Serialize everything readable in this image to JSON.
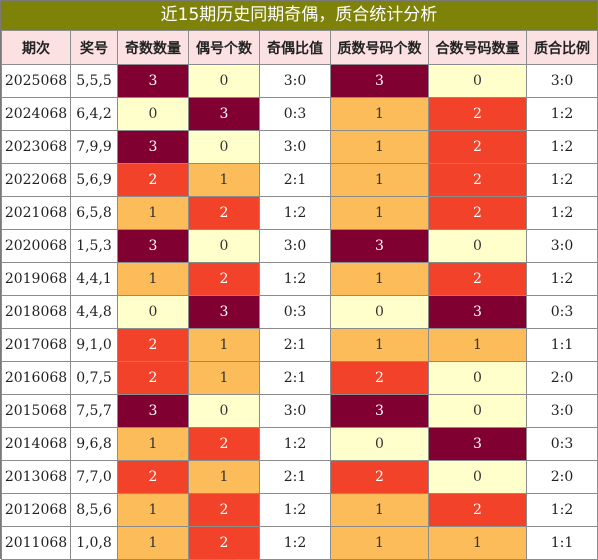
{
  "title": "近15期历史同期奇偶，质合统计分析",
  "columns": [
    "期次",
    "奖号",
    "奇数数量",
    "偶号个数",
    "奇偶比值",
    "质数号码个数",
    "合数号码数量",
    "质合比例"
  ],
  "rows": [
    [
      "2025068",
      "5,5,5",
      "3",
      "0",
      "3:0",
      "3",
      "0",
      "3:0"
    ],
    [
      "2024068",
      "6,4,2",
      "0",
      "3",
      "0:3",
      "1",
      "2",
      "1:2"
    ],
    [
      "2023068",
      "7,9,9",
      "3",
      "0",
      "3:0",
      "1",
      "2",
      "1:2"
    ],
    [
      "2022068",
      "5,6,9",
      "2",
      "1",
      "2:1",
      "1",
      "2",
      "1:2"
    ],
    [
      "2021068",
      "6,5,8",
      "1",
      "2",
      "1:2",
      "1",
      "2",
      "1:2"
    ],
    [
      "2020068",
      "1,5,3",
      "3",
      "0",
      "3:0",
      "3",
      "0",
      "3:0"
    ],
    [
      "2019068",
      "4,4,1",
      "1",
      "2",
      "1:2",
      "1",
      "2",
      "1:2"
    ],
    [
      "2018068",
      "4,4,8",
      "0",
      "3",
      "0:3",
      "0",
      "3",
      "0:3"
    ],
    [
      "2017068",
      "9,1,0",
      "2",
      "1",
      "2:1",
      "1",
      "1",
      "1:1"
    ],
    [
      "2016068",
      "0,7,5",
      "2",
      "1",
      "2:1",
      "2",
      "0",
      "2:0"
    ],
    [
      "2015068",
      "7,5,7",
      "3",
      "0",
      "3:0",
      "3",
      "0",
      "3:0"
    ],
    [
      "2014068",
      "9,6,8",
      "1",
      "2",
      "1:2",
      "0",
      "3",
      "0:3"
    ],
    [
      "2013068",
      "7,7,0",
      "2",
      "1",
      "2:1",
      "2",
      "0",
      "2:0"
    ],
    [
      "2012068",
      "8,5,6",
      "1",
      "2",
      "1:2",
      "1",
      "2",
      "1:2"
    ],
    [
      "2011068",
      "1,0,8",
      "1",
      "2",
      "1:2",
      "1",
      "1",
      "1:1"
    ]
  ],
  "colors": {
    "title_bg": "#7f8209",
    "header_bg": "#fbe1e1",
    "count_0": "#ffffcc",
    "count_1": "#fdbc5a",
    "count_2": "#f2432a",
    "count_3": "#800032"
  }
}
